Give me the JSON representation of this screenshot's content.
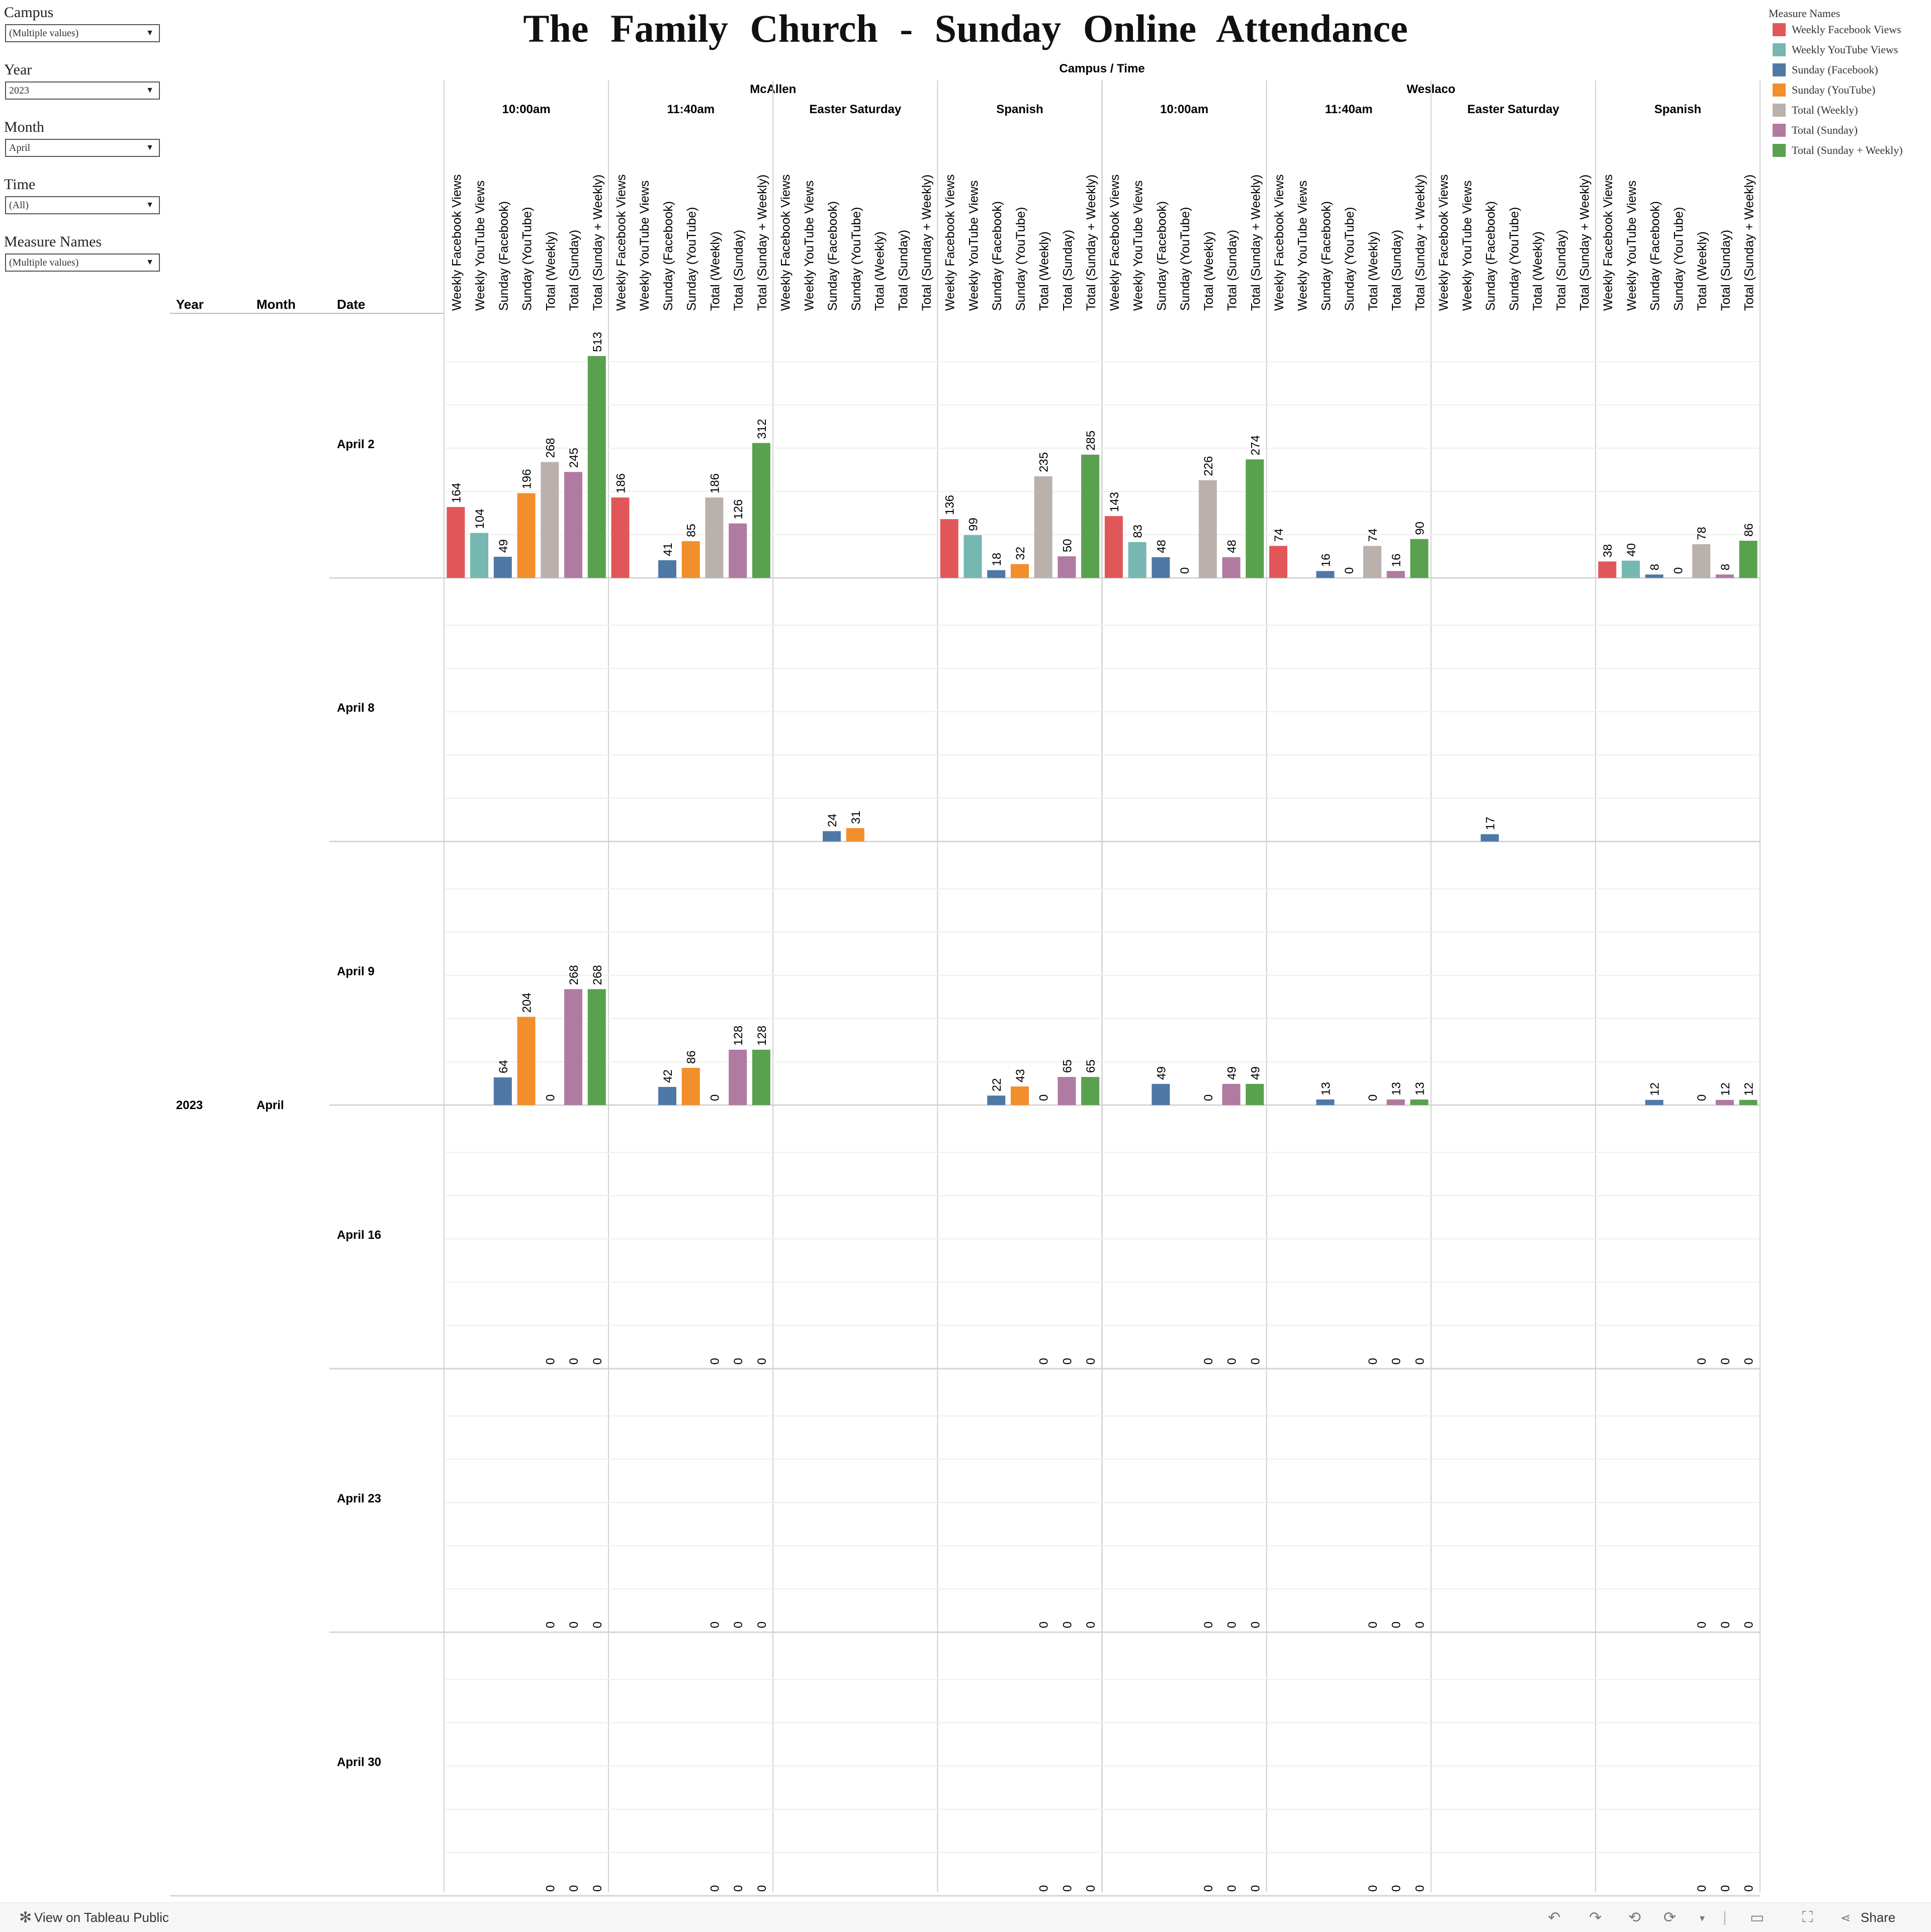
{
  "title": "The Family Church - Sunday Online Attendance",
  "filters": [
    {
      "label": "Campus",
      "value": "(Multiple values)"
    },
    {
      "label": "Year",
      "value": "2023"
    },
    {
      "label": "Month",
      "value": "April"
    },
    {
      "label": "Time",
      "value": "(All)"
    },
    {
      "label": "Measure Names",
      "value": "(Multiple values)"
    }
  ],
  "legend": {
    "title": "Measure Names",
    "items": [
      {
        "label": "Weekly Facebook Views",
        "color": "#e15759"
      },
      {
        "label": "Weekly YouTube Views",
        "color": "#76b7b2"
      },
      {
        "label": "Sunday (Facebook)",
        "color": "#4e79a7"
      },
      {
        "label": "Sunday (YouTube)",
        "color": "#f28e2b"
      },
      {
        "label": "Total (Weekly)",
        "color": "#bab0ac"
      },
      {
        "label": "Total (Sunday)",
        "color": "#b07aa1"
      },
      {
        "label": "Total (Sunday + Weekly)",
        "color": "#59a14f"
      }
    ]
  },
  "footer": {
    "tableau_label": "View on Tableau Public",
    "share_label": "Share"
  },
  "chart_data": {
    "type": "bar",
    "column_header_title": "Campus  /  Time",
    "row_headers": [
      "Year",
      "Month",
      "Date"
    ],
    "year": "2023",
    "month": "April",
    "campuses": [
      "McAllen",
      "Weslaco"
    ],
    "times": [
      "10:00am",
      "11:40am",
      "Easter Saturday",
      "Spanish"
    ],
    "measures": [
      "Weekly Facebook Views",
      "Weekly YouTube Views",
      "Sunday (Facebook)",
      "Sunday (YouTube)",
      "Total  (Weekly)",
      "Total (Sunday)",
      "Total  (Sunday + Weekly)"
    ],
    "dates": [
      "April 2",
      "April 8",
      "April 9",
      "April 16",
      "April 23",
      "April 30"
    ],
    "values": [
      [
        [
          164,
          104,
          49,
          196,
          268,
          245,
          513
        ],
        [
          186,
          null,
          41,
          85,
          186,
          126,
          312
        ],
        [
          null,
          null,
          null,
          null,
          null,
          null,
          null
        ],
        [
          136,
          99,
          18,
          32,
          235,
          50,
          285
        ],
        [
          143,
          83,
          48,
          0,
          226,
          48,
          274
        ],
        [
          74,
          null,
          16,
          0,
          74,
          16,
          90
        ],
        [
          null,
          null,
          null,
          null,
          null,
          null,
          null
        ],
        [
          38,
          40,
          8,
          0,
          78,
          8,
          86
        ]
      ],
      [
        [
          null,
          null,
          null,
          null,
          null,
          null,
          null
        ],
        [
          null,
          null,
          null,
          null,
          null,
          null,
          null
        ],
        [
          null,
          null,
          24,
          31,
          null,
          null,
          null
        ],
        [
          null,
          null,
          null,
          null,
          null,
          null,
          null
        ],
        [
          null,
          null,
          null,
          null,
          null,
          null,
          null
        ],
        [
          null,
          null,
          null,
          null,
          null,
          null,
          null
        ],
        [
          null,
          null,
          17,
          null,
          null,
          null,
          null
        ],
        [
          null,
          null,
          null,
          null,
          null,
          null,
          null
        ]
      ],
      [
        [
          null,
          null,
          64,
          204,
          0,
          268,
          268
        ],
        [
          null,
          null,
          42,
          86,
          0,
          128,
          128
        ],
        [
          null,
          null,
          null,
          null,
          null,
          null,
          null
        ],
        [
          null,
          null,
          22,
          43,
          0,
          65,
          65
        ],
        [
          null,
          null,
          49,
          null,
          0,
          49,
          49
        ],
        [
          null,
          null,
          13,
          null,
          0,
          13,
          13
        ],
        [
          null,
          null,
          null,
          null,
          null,
          null,
          null
        ],
        [
          null,
          null,
          12,
          null,
          0,
          12,
          12
        ]
      ],
      [
        [
          null,
          null,
          null,
          null,
          0,
          0,
          0
        ],
        [
          null,
          null,
          null,
          null,
          0,
          0,
          0
        ],
        [
          null,
          null,
          null,
          null,
          null,
          null,
          null
        ],
        [
          null,
          null,
          null,
          null,
          0,
          0,
          0
        ],
        [
          null,
          null,
          null,
          null,
          0,
          0,
          0
        ],
        [
          null,
          null,
          null,
          null,
          0,
          0,
          0
        ],
        [
          null,
          null,
          null,
          null,
          null,
          null,
          null
        ],
        [
          null,
          null,
          null,
          null,
          0,
          0,
          0
        ]
      ],
      [
        [
          null,
          null,
          null,
          null,
          0,
          0,
          0
        ],
        [
          null,
          null,
          null,
          null,
          0,
          0,
          0
        ],
        [
          null,
          null,
          null,
          null,
          null,
          null,
          null
        ],
        [
          null,
          null,
          null,
          null,
          0,
          0,
          0
        ],
        [
          null,
          null,
          null,
          null,
          0,
          0,
          0
        ],
        [
          null,
          null,
          null,
          null,
          0,
          0,
          0
        ],
        [
          null,
          null,
          null,
          null,
          null,
          null,
          null
        ],
        [
          null,
          null,
          null,
          null,
          0,
          0,
          0
        ]
      ],
      [
        [
          null,
          null,
          null,
          null,
          0,
          0,
          0
        ],
        [
          null,
          null,
          null,
          null,
          0,
          0,
          0
        ],
        [
          null,
          null,
          null,
          null,
          null,
          null,
          null
        ],
        [
          null,
          null,
          null,
          null,
          0,
          0,
          0
        ],
        [
          null,
          null,
          null,
          null,
          0,
          0,
          0
        ],
        [
          null,
          null,
          null,
          null,
          0,
          0,
          0
        ],
        [
          null,
          null,
          null,
          null,
          null,
          null,
          null
        ],
        [
          null,
          null,
          null,
          null,
          0,
          0,
          0
        ]
      ]
    ],
    "ylim": [
      0,
      600
    ],
    "grid": true,
    "legend_position": "top-right"
  }
}
